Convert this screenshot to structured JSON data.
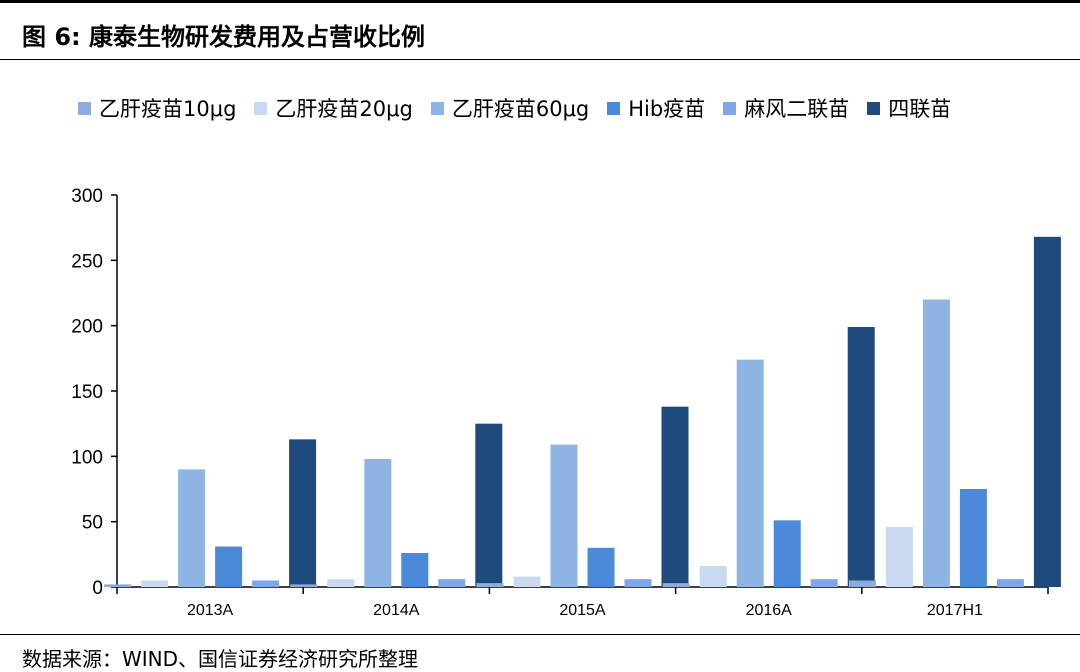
{
  "figure": {
    "title": "图 6: 康泰生物研发费用及占营收比例",
    "source": "数据来源：WIND、国信证券经济研究所整理"
  },
  "chart_data": {
    "type": "bar",
    "categories": [
      "2013A",
      "2014A",
      "2015A",
      "2016A",
      "2017H1"
    ],
    "ylim": [
      0,
      300
    ],
    "yticks": [
      0,
      50,
      100,
      150,
      200,
      250,
      300
    ],
    "legend_position": "top",
    "grid": false,
    "series": [
      {
        "name": "乙肝疫苗10μg",
        "color": "#8FAADC",
        "values": [
          2,
          2,
          3,
          3,
          5
        ]
      },
      {
        "name": "乙肝疫苗20μg",
        "color": "#C9D9F1",
        "values": [
          5,
          6,
          8,
          16,
          46
        ]
      },
      {
        "name": "乙肝疫苗60μg",
        "color": "#8EB4E3",
        "values": [
          90,
          98,
          109,
          174,
          220
        ]
      },
      {
        "name": "Hib疫苗",
        "color": "#4A8AD8",
        "values": [
          31,
          26,
          30,
          51,
          75
        ]
      },
      {
        "name": "麻风二联苗",
        "color": "#7EA6E8",
        "values": [
          5,
          6,
          6,
          6,
          6
        ]
      },
      {
        "name": "四联苗",
        "color": "#1F4A7E",
        "values": [
          113,
          125,
          138,
          199,
          268
        ]
      }
    ]
  }
}
